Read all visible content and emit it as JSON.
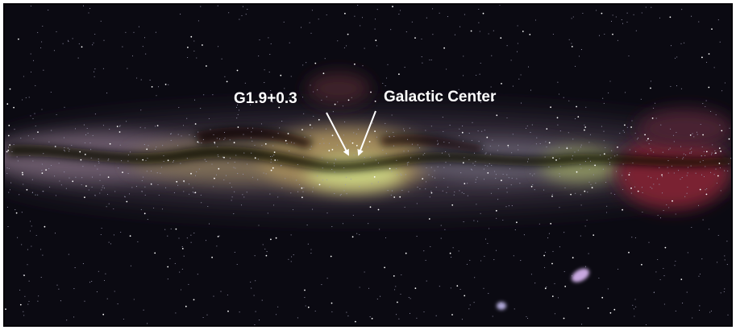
{
  "annotations": [
    "G1.9+0.3",
    "Galactic Center"
  ]
}
